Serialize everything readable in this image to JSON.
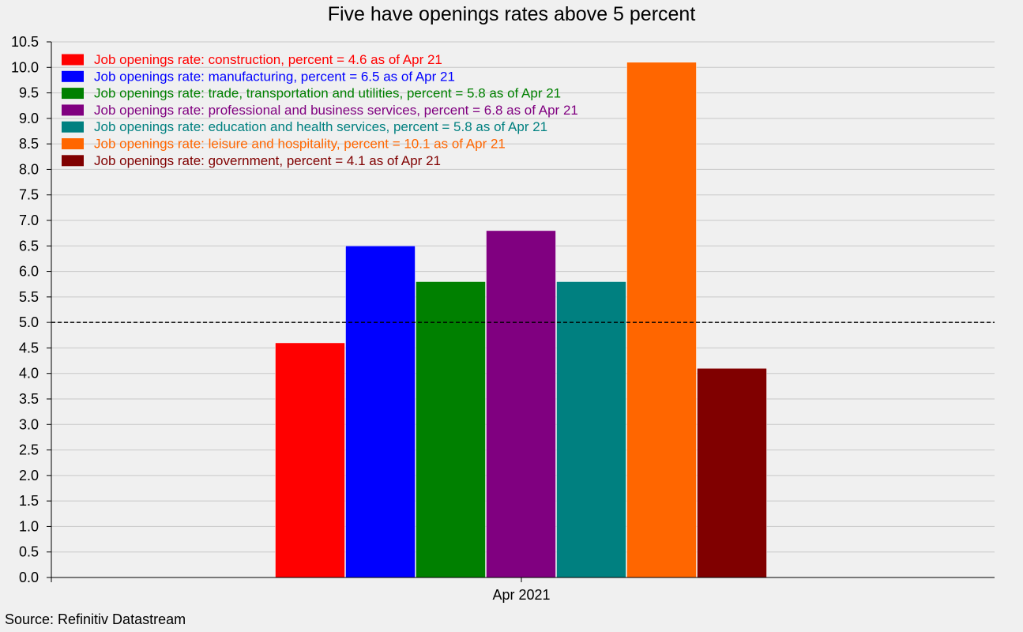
{
  "chart_data": {
    "type": "bar",
    "title": "Five have openings rates above 5 percent",
    "source": "Source: Refinitiv Datastream",
    "categories": [
      "Apr 2021"
    ],
    "series": [
      {
        "name": "Job openings rate: construction, percent = 4.6 as of Apr 21",
        "values": [
          4.6
        ],
        "color": "#ff0000"
      },
      {
        "name": "Job openings rate: manufacturing, percent = 6.5 as of Apr 21",
        "values": [
          6.5
        ],
        "color": "#0000ff"
      },
      {
        "name": "Job openings rate: trade, transportation and utilities, percent = 5.8 as of Apr 21",
        "values": [
          5.8
        ],
        "color": "#008000"
      },
      {
        "name": "Job openings rate: professional and business services, percent = 6.8 as of Apr 21",
        "values": [
          6.8
        ],
        "color": "#800080"
      },
      {
        "name": "Job openings rate: education and health services, percent = 5.8 as of Apr 21",
        "values": [
          5.8
        ],
        "color": "#008080"
      },
      {
        "name": "Job openings rate: leisure and hospitality, percent = 10.1 as of Apr 21",
        "values": [
          10.1
        ],
        "color": "#ff6600"
      },
      {
        "name": "Job openings rate: government, percent = 4.1 as of Apr 21",
        "values": [
          4.1
        ],
        "color": "#800000"
      }
    ],
    "reference_line": {
      "value": 5.0,
      "style": "dashed",
      "color": "#000000"
    },
    "ylim": [
      0,
      10.5
    ],
    "yticks": [
      "0.0",
      "0.5",
      "1.0",
      "1.5",
      "2.0",
      "2.5",
      "3.0",
      "3.5",
      "4.0",
      "4.5",
      "5.0",
      "5.5",
      "6.0",
      "6.5",
      "7.0",
      "7.5",
      "8.0",
      "8.5",
      "9.0",
      "9.5",
      "10.0",
      "10.5"
    ],
    "grid": true,
    "legend_position": "top-left"
  }
}
